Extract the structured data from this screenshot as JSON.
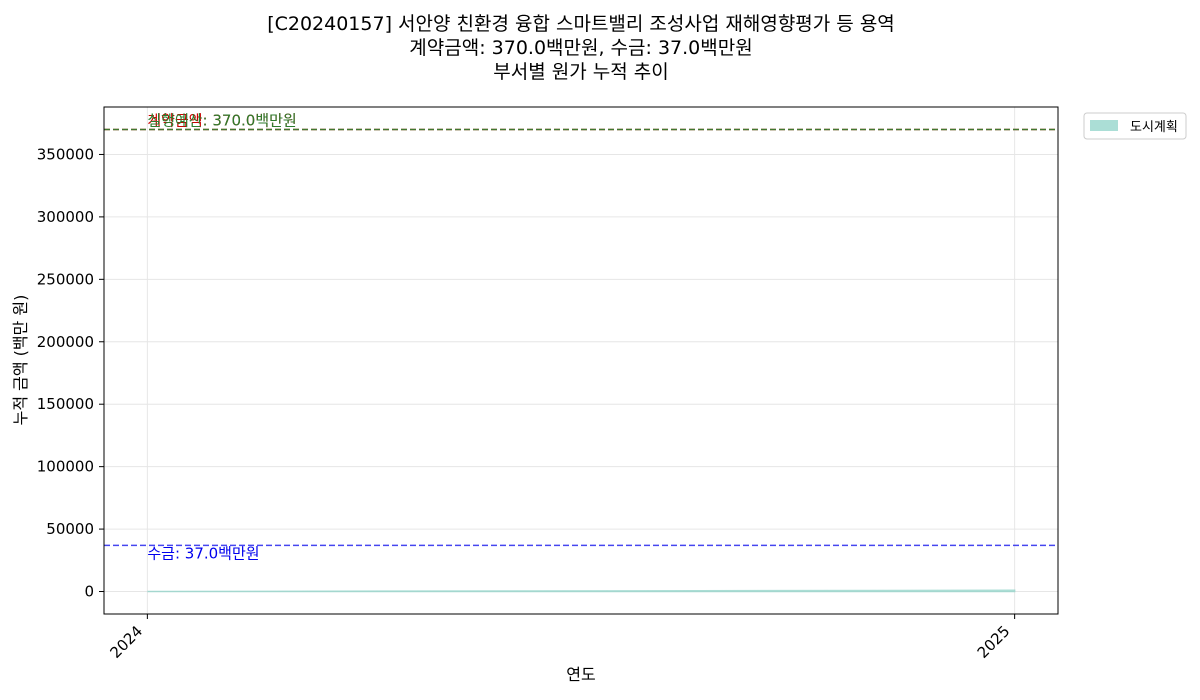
{
  "chart_data": {
    "type": "area",
    "title_lines": [
      "[C20240157] 서안양 친환경 융합 스마트밸리 조성사업 재해영향평가 등 용역",
      "계약금액: 370.0백만원, 수금: 37.0백만원",
      "부서별 원가 누적 추이"
    ],
    "xlabel": "연도",
    "ylabel": "누적 금액 (백만 원)",
    "x_ticks": [
      "2024",
      "2025"
    ],
    "xlim": [
      2023.95,
      2025.05
    ],
    "ylim": [
      -18000,
      388000
    ],
    "y_ticks": [
      0,
      50000,
      100000,
      150000,
      200000,
      250000,
      300000,
      350000
    ],
    "y_tick_labels": [
      "0",
      "50000",
      "100000",
      "150000",
      "200000",
      "250000",
      "300000",
      "350000"
    ],
    "grid": true,
    "legend_position": "outside-top-right",
    "series": [
      {
        "name": "도시계획",
        "color": "#8fd3c8",
        "x": [
          2024,
          2025
        ],
        "values": [
          0,
          1000
        ]
      }
    ],
    "reference_lines": [
      {
        "label": "계약금액: 370.0백만원",
        "value": 370000,
        "color": "#dd2222",
        "text_color": "#cc0000"
      },
      {
        "label": "실행예산: 370.0백만원",
        "value": 370000,
        "color": "#2f7f2f",
        "text_color": "#2d7d2d"
      },
      {
        "label": "수금: 37.0백만원",
        "value": 37000,
        "color": "#3333ee",
        "text_color": "#0000ee"
      }
    ]
  }
}
